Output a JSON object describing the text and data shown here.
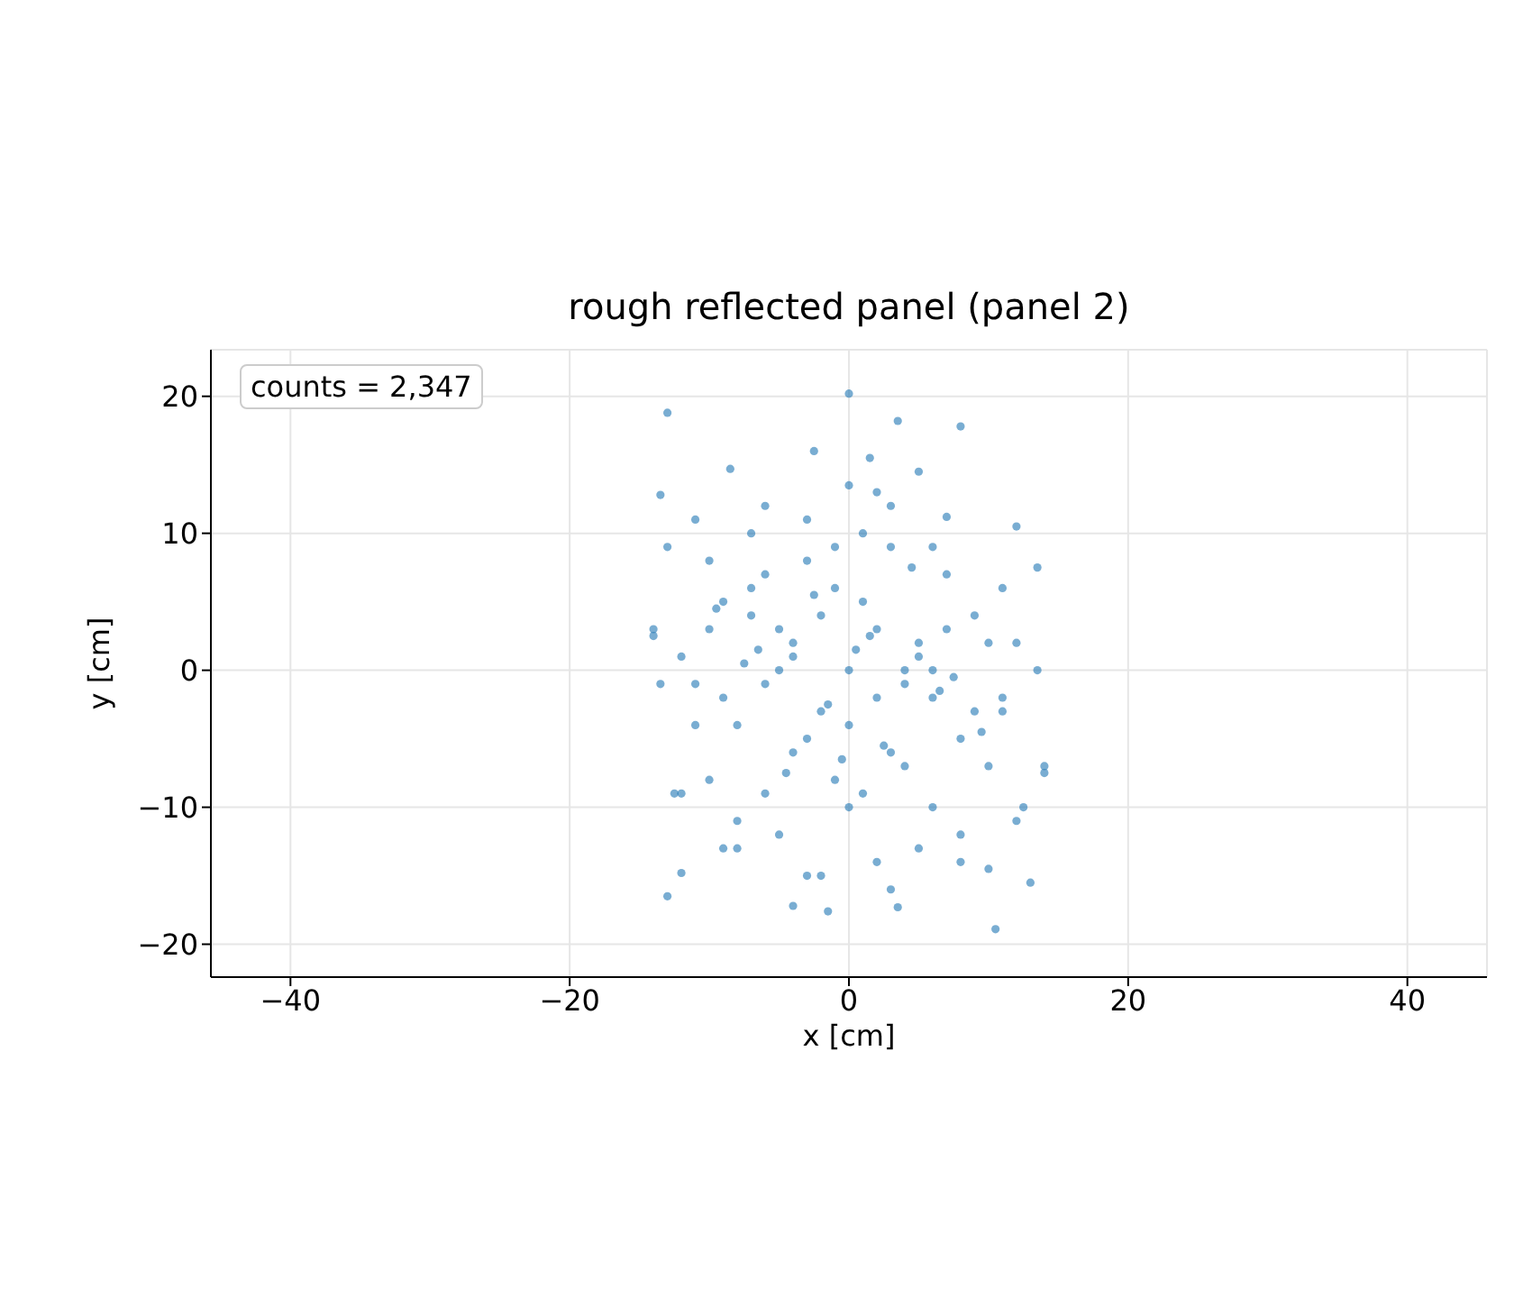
{
  "chart_data": {
    "type": "scatter",
    "title": "rough reflected panel (panel 2)",
    "xlabel": "x [cm]",
    "ylabel": "y [cm]",
    "annotations": [
      "counts = 2,347"
    ],
    "xlim": [
      -45.7,
      45.7
    ],
    "xticks": [
      -40,
      -20,
      0,
      20,
      40
    ],
    "ylim": [
      -22.4,
      23.4
    ],
    "yticks": [
      -20,
      -10,
      0,
      10,
      20
    ],
    "grid": true,
    "marker": "circle",
    "series": [
      {
        "color": "#1f77b4",
        "x": [
          0,
          -13,
          3.5,
          8,
          -8.5,
          -13.5,
          -2.5,
          1.5,
          5,
          10.5,
          -1.5,
          -4,
          3.5,
          -12,
          10,
          -11,
          7,
          -6,
          2,
          -9,
          12,
          -13,
          13.5,
          -14,
          14,
          -12.5,
          12.5,
          -10,
          11,
          -7,
          6,
          -3,
          3,
          0,
          -5,
          5,
          -8,
          8,
          -2,
          2,
          -10,
          10,
          -6,
          6,
          -4,
          4,
          -1,
          1,
          -11,
          11,
          -9,
          9,
          -7,
          7,
          -3,
          3,
          -12,
          12,
          -13.5,
          13.5,
          -5,
          5,
          0,
          -2,
          2,
          -8,
          8,
          -4,
          4,
          -6,
          6,
          -1,
          1,
          -10,
          10,
          -3,
          3,
          0,
          -7,
          7,
          -9,
          9,
          -11,
          11,
          -5,
          5,
          -2,
          2,
          -12,
          12,
          -6,
          6,
          -4,
          4,
          0,
          -1,
          1,
          -8,
          8,
          -3,
          3,
          -13,
          13,
          -9.5,
          9.5,
          -6.5,
          6.5,
          -2.5,
          2.5,
          4.5,
          -4.5,
          7.5,
          -7.5,
          1.5,
          -1.5,
          0.5,
          -0.5,
          -14,
          14
        ],
        "values": [
          20.2,
          18.8,
          18.2,
          17.8,
          14.7,
          12.8,
          16,
          15.5,
          14.5,
          -18.9,
          -17.6,
          -17.2,
          -17.3,
          -14.8,
          -14.5,
          11,
          11.2,
          12,
          13,
          -13,
          10.5,
          9,
          7.5,
          3,
          -7,
          -9,
          -10,
          8,
          6,
          10,
          9,
          11,
          12,
          13.5,
          -12,
          -13,
          -11,
          -12,
          -15,
          -14,
          -8,
          -7,
          -9,
          -10,
          -6,
          -7,
          -8,
          -9,
          -4,
          -3,
          5,
          4,
          6,
          7,
          8,
          9,
          1,
          2,
          -1,
          0,
          3,
          2,
          0,
          -3,
          -2,
          -4,
          -5,
          1,
          0,
          -1,
          0,
          6,
          5,
          3,
          2,
          -5,
          -6,
          -10,
          4,
          3,
          -2,
          -3,
          -1,
          -2,
          0,
          1,
          4,
          3,
          -9,
          -11,
          7,
          -2,
          2,
          -1,
          -4,
          9,
          10,
          -13,
          -14,
          -15,
          -16,
          -16.5,
          -15.5,
          4.5,
          -4.5,
          1.5,
          -1.5,
          5.5,
          -5.5,
          7.5,
          -7.5,
          -0.5,
          0.5,
          2.5,
          -2.5,
          1.5,
          -6.5,
          2.5,
          -7.5
        ]
      }
    ]
  }
}
